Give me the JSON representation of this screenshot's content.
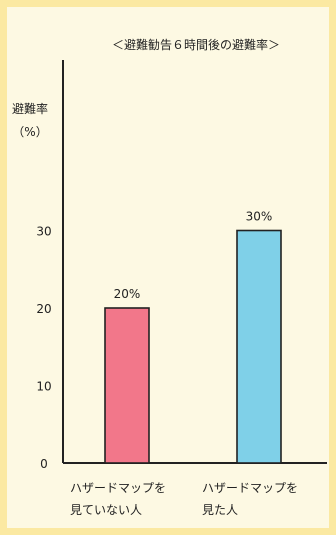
{
  "chart_data": {
    "type": "bar",
    "title": "＜避難勧告６時間後の避難率＞",
    "ylabel_line1": "避難率",
    "ylabel_line2": "（%）",
    "yticks": [
      "0",
      "10",
      "20",
      "30"
    ],
    "ylim": [
      0,
      52
    ],
    "categories": [
      {
        "line1": "ハザードマップを",
        "line2": "見ていない人"
      },
      {
        "line1": "ハザードマップを",
        "line2": "見た人"
      }
    ],
    "values": [
      20,
      30
    ],
    "data_labels": [
      "20%",
      "30%"
    ],
    "colors": [
      "#f2778a",
      "#7fd0e8"
    ],
    "grid": false,
    "legend": "none"
  }
}
